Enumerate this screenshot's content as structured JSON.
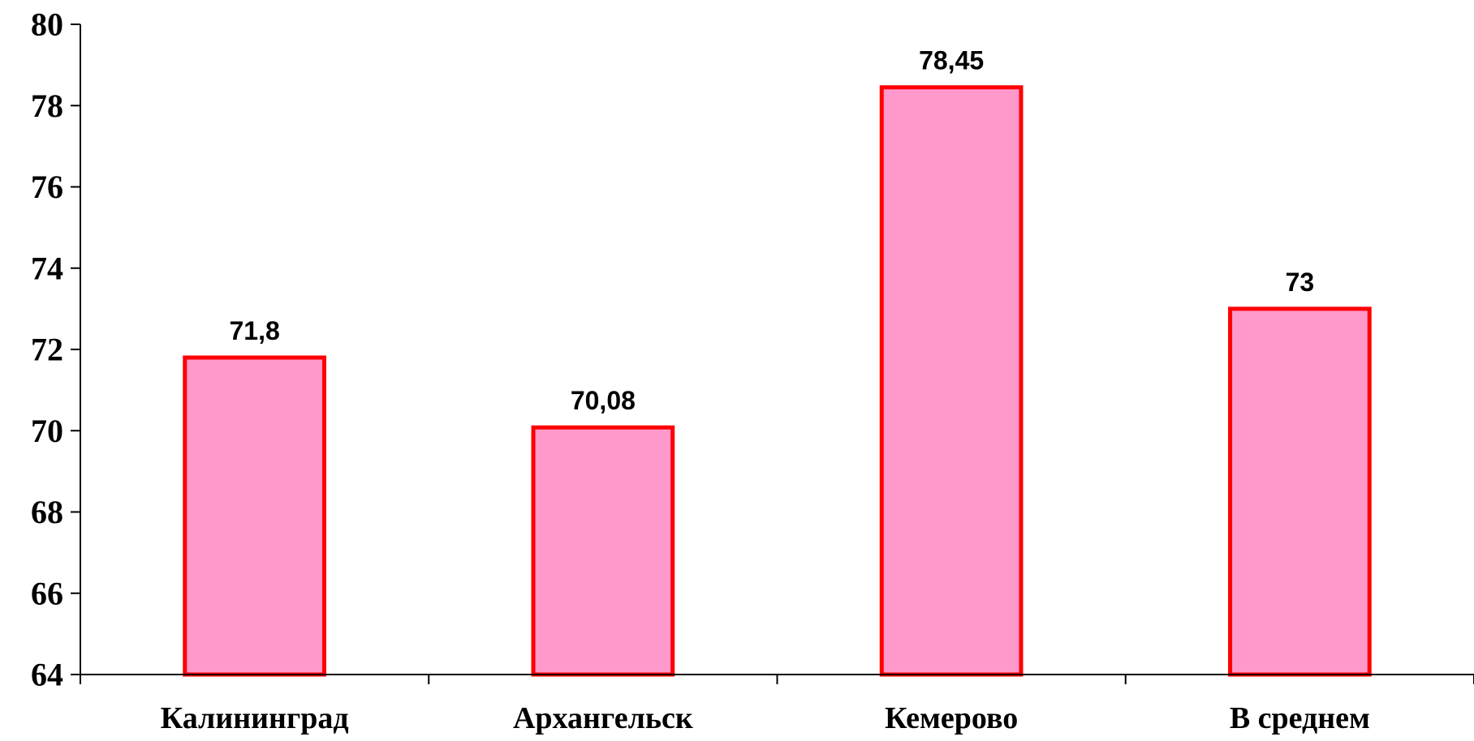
{
  "chart_data": {
    "type": "bar",
    "categories": [
      "Калининград",
      "Архангельск",
      "Кемерово",
      "В среднем"
    ],
    "values": [
      71.8,
      70.08,
      78.45,
      73
    ],
    "data_labels": [
      "71,8",
      "70,08",
      "78,45",
      "73"
    ],
    "ylim": [
      64,
      80
    ],
    "yticks": [
      64,
      66,
      68,
      70,
      72,
      74,
      76,
      78,
      80
    ],
    "ytick_labels": [
      "64",
      "66",
      "68",
      "70",
      "72",
      "74",
      "76",
      "78",
      "80"
    ],
    "grid": false,
    "legend": "none",
    "title": "",
    "xlabel": "",
    "ylabel": "",
    "colors": {
      "bar_fill": "#FF99CC",
      "bar_stroke": "#FF0000"
    }
  }
}
